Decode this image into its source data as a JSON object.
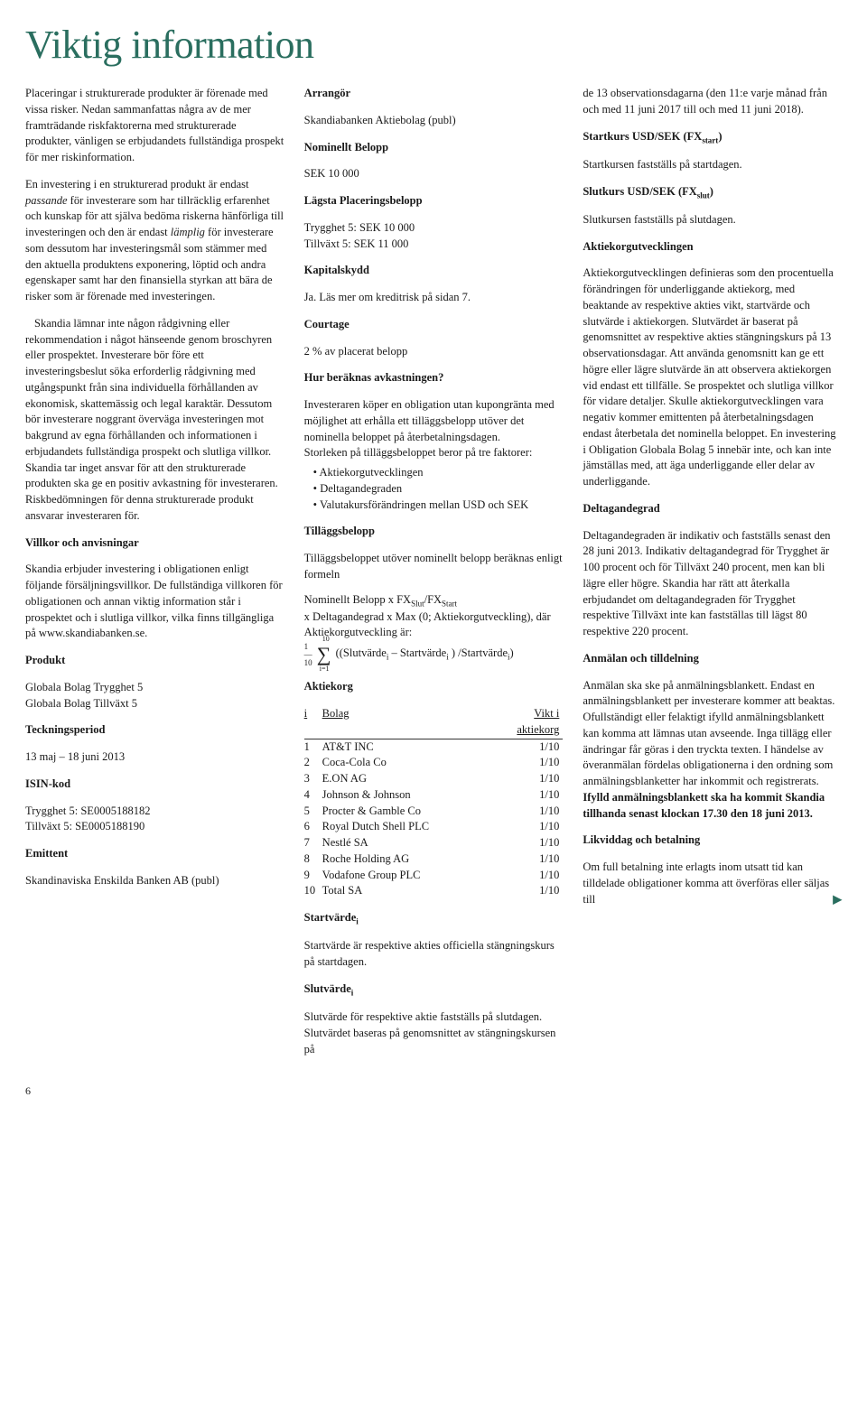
{
  "title": "Viktig information",
  "page_number": "6",
  "col1": {
    "p1": "Placeringar i strukturerade produkter är förenade med vissa risker. Nedan sammanfattas några av de mer framträdande riskfaktorerna med strukturerade produkter, vänligen se erbjudandets fullständiga prospekt för mer riskinformation.",
    "p2a": "En investering i en strukturerad produkt är endast ",
    "p2em1": "passande",
    "p2b": " för investerare som har tillräcklig erfarenhet och kunskap för att själva bedöma riskerna hänförliga till investeringen och den är endast ",
    "p2em2": "lämplig",
    "p2c": " för investerare som dessutom har investeringsmål som stämmer med den aktuella produktens exponering, löptid och andra egenskaper samt har den finansiella styrkan att bära de risker som är förenade med investeringen.",
    "p3": "Skandia lämnar inte någon rådgivning eller rekommendation i något hänseende genom broschyren eller prospektet. Investerare bör före ett investeringsbeslut söka erforderlig rådgivning med utgångspunkt från sina individuella förhållanden av ekonomisk, skattemässig och legal karaktär. Dessutom bör investerare noggrant överväga investeringen mot bakgrund av egna förhållanden och informationen i erbjudandets fullständiga prospekt och slutliga villkor. Skandia tar inget ansvar för att den strukturerade produkten ska ge en positiv avkastning för investeraren. Riskbedömningen för denna strukturerade produkt ansvarar investeraren för.",
    "villkor_head": "Villkor och anvisningar",
    "villkor": "Skandia erbjuder investering i obligationen enligt följande försäljningsvillkor. De fullständiga villkoren för obligationen och annan viktig information står i prospektet och i slutliga villkor, vilka finns tillgängliga på www.skandiabanken.se.",
    "produkt_head": "Produkt",
    "produkt1": "Globala Bolag Trygghet 5",
    "produkt2": "Globala Bolag Tillväxt 5",
    "teckning_head": "Teckningsperiod",
    "teckning": "13 maj – 18 juni 2013",
    "isin_head": "ISIN-kod",
    "isin1": "Trygghet 5:  SE0005188182",
    "isin2": "Tillväxt 5:   SE0005188190",
    "emittent_head": "Emittent",
    "emittent": "Skandinaviska Enskilda Banken AB (publ)"
  },
  "col2": {
    "arrangor_head": "Arrangör",
    "arrangor": "Skandiabanken Aktiebolag (publ)",
    "nominellt_head": "Nominellt Belopp",
    "nominellt": "SEK 10 000",
    "lagsta_head": "Lägsta Placeringsbelopp",
    "lagsta1": "Trygghet 5:  SEK 10 000",
    "lagsta2": "Tillväxt 5:   SEK 11 000",
    "kapitalskydd_head": "Kapitalskydd",
    "kapitalskydd": "Ja. Läs mer om kreditrisk på sidan 7.",
    "courtage_head": "Courtage",
    "courtage": "2 % av placerat belopp",
    "avkast_head": "Hur beräknas avkastningen?",
    "avkast1": "Investeraren köper en obligation utan kupongränta med möjlighet att erhålla ett tilläggsbelopp utöver det nominella beloppet på återbetalningsdagen.",
    "avkast2": "Storleken på tilläggsbeloppet beror på tre faktorer:",
    "bullet1": "Aktiekorgutvecklingen",
    "bullet2": "Deltagandegraden",
    "bullet3": "Valutakursförändringen mellan USD och SEK",
    "tillaggs_head": "Tilläggsbelopp",
    "tillaggs1": "Tilläggsbeloppet utöver nominellt belopp beräknas enligt formeln",
    "formula1": "Nominellt Belopp x FX",
    "formula_slut": "Slut",
    "formula_div": "/FX",
    "formula_start": "Start",
    "formula2": "x Deltagandegrad x Max (0; Aktiekorgutveckling), där Aktiekorgutveckling är:",
    "sum_prefix": "1/10",
    "sum_body": "∑",
    "sum_sup": "10",
    "sum_sub": "i=1",
    "sum_expr1": "((Slutvärde",
    "sum_i": "i",
    "sum_expr2": " – Startvärde",
    "sum_expr3": " ) /Startvärde",
    "sum_expr4": ")",
    "aktiekorg_head": "Aktiekorg",
    "th_i": "i",
    "th_bolag": "Bolag",
    "th_vikt": "Vikt i aktiekorg",
    "rows": [
      {
        "i": "1",
        "bolag": "AT&T INC",
        "vikt": "1/10"
      },
      {
        "i": "2",
        "bolag": "Coca-Cola Co",
        "vikt": "1/10"
      },
      {
        "i": "3",
        "bolag": "E.ON AG",
        "vikt": "1/10"
      },
      {
        "i": "4",
        "bolag": "Johnson & Johnson",
        "vikt": "1/10"
      },
      {
        "i": "5",
        "bolag": "Procter & Gamble Co",
        "vikt": "1/10"
      },
      {
        "i": "6",
        "bolag": "Royal Dutch Shell PLC",
        "vikt": "1/10"
      },
      {
        "i": "7",
        "bolag": "Nestlé SA",
        "vikt": "1/10"
      },
      {
        "i": "8",
        "bolag": "Roche Holding AG",
        "vikt": "1/10"
      },
      {
        "i": "9",
        "bolag": "Vodafone Group PLC",
        "vikt": "1/10"
      },
      {
        "i": "10",
        "bolag": "Total SA",
        "vikt": "1/10"
      }
    ],
    "startvarde_head": "Startvärde",
    "startvarde": "Startvärde är respektive akties officiella stängningskurs på startdagen.",
    "slutvarde_head": "Slutvärde",
    "slutvarde": "Slutvärde för respektive aktie fastställs på slutdagen. Slutvärdet baseras på genomsnittet av stängningskursen på"
  },
  "col3": {
    "p1": "de 13 observationsdagarna (den 11:e varje månad från och med 11 juni 2017 till och med 11 juni 2018).",
    "startkurs_head1": "Startkurs USD/SEK (FX",
    "startkurs_head2": "start",
    "startkurs_head3": ")",
    "startkurs": "Startkursen fastställs på startdagen.",
    "slutkurs_head1": "Slutkurs USD/SEK (FX",
    "slutkurs_head2": "slut",
    "slutkurs_head3": ")",
    "slutkurs": "Slutkursen fastställs på slutdagen.",
    "aku_head": "Aktiekorgutvecklingen",
    "aku": "Aktiekorgutvecklingen definieras som den procentuella förändringen för underliggande aktiekorg, med beaktande av respektive akties vikt, startvärde och slutvärde i aktiekorgen. Slutvärdet är baserat på genomsnittet av respektive akties stängningskurs på 13 observationsdagar. Att använda genomsnitt kan ge ett högre eller lägre slutvärde än att observera aktiekorgen vid endast ett tillfälle. Se prospektet och slutliga villkor för vidare detaljer. Skulle aktiekorgutvecklingen vara negativ kommer emittenten på återbetalningsdagen endast återbetala det nominella beloppet. En investering i Obligation Globala Bolag 5 innebär inte, och kan inte jämställas med, att äga underliggande eller delar av underliggande.",
    "deltag_head": "Deltagandegrad",
    "deltag": "Deltagandegraden är indikativ och fastställs senast den 28 juni 2013. Indikativ deltagandegrad för Trygghet är 100 procent och för Tillväxt 240 procent, men kan bli lägre eller högre. Skandia har rätt att återkalla erbjudandet om deltagandegraden för Trygghet respektive Tillväxt inte kan fastställas till lägst 80 respektive 220 procent.",
    "anmalan_head": "Anmälan och tilldelning",
    "anmalan1": "Anmälan ska ske på anmälningsblankett. Endast en anmälningsblankett per investerare kommer att beaktas. Ofullständigt eller felaktigt ifylld anmälningsblankett kan komma att lämnas utan avseende. Inga tillägg eller ändringar får göras i den tryckta texten. I händelse av överanmälan fördelas obligationerna i den ordning som anmälningsblanketter har inkommit och registrerats. ",
    "anmalan2": "Ifylld anmälningsblankett ska ha kommit Skandia tillhanda senast klockan 17.30 den 18 juni 2013.",
    "likvid_head": "Likviddag och betalning",
    "likvid": "Om full betalning inte erlagts inom utsatt tid kan tilldelade obligationer komma att överföras eller säljas till"
  }
}
